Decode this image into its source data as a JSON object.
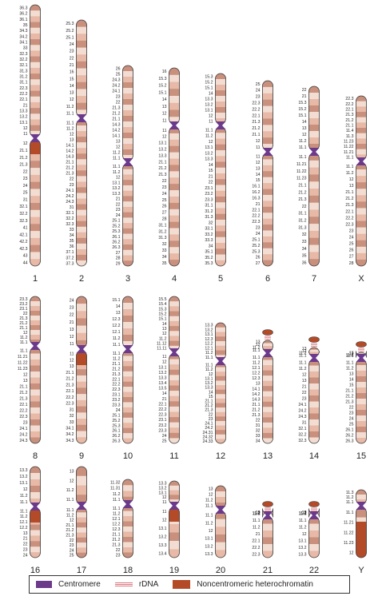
{
  "colors": {
    "outline": "#3a3a3a",
    "band_dark": "#c8907d",
    "band_light": "#f3ddd2",
    "band_mid": "#e7b9a6",
    "centromere": "#6b3a8a",
    "heterochromatin": "#b34a28",
    "rdna": "#d9767e",
    "label": "#231f20"
  },
  "legend": {
    "centromere": "Centromere",
    "rdna": "rDNA",
    "heterochromatin": "Noncentromeric heterochromatin"
  },
  "chromosomes": [
    {
      "name": "1",
      "p": [
        "36.3",
        "36.2",
        "36.1",
        "35",
        "34.3",
        "34.2",
        "34.1",
        "33",
        "32.3",
        "32.2",
        "32.1",
        "31.3",
        "31.2",
        "31.1",
        "22.3",
        "22.2",
        "22.1",
        "21",
        "13.3",
        "13.2",
        "13.1",
        "12",
        "11"
      ],
      "q": [
        "12",
        "21.1",
        "21.2",
        "21.3",
        "22",
        "23",
        "24",
        "25",
        "31",
        "32.1",
        "32.2",
        "32.3",
        "41",
        "42.1",
        "42.2",
        "42.3",
        "43",
        "44"
      ],
      "het": true,
      "stalk": false
    },
    {
      "name": "2",
      "p": [
        "25.3",
        "25.2",
        "25.1",
        "24",
        "23",
        "22",
        "21",
        "16",
        "15",
        "14",
        "13",
        "12",
        "11.2",
        "11.1"
      ],
      "q": [
        "11.1",
        "11.2",
        "12",
        "13",
        "14.1",
        "14.2",
        "14.3",
        "21.1",
        "21.2",
        "21.3",
        "22",
        "23",
        "24.1",
        "24.2",
        "24.3",
        "31",
        "32.1",
        "32.2",
        "32.3",
        "33",
        "34",
        "35",
        "36",
        "37.1",
        "37.2",
        "37.3"
      ],
      "het": false,
      "stalk": false
    },
    {
      "name": "3",
      "p": [
        "26",
        "25",
        "24.3",
        "24.2",
        "24.1",
        "23",
        "22",
        "21.3",
        "21.2",
        "21.1",
        "14.3",
        "14.2",
        "14.1",
        "13",
        "12",
        "11.2",
        "11.1"
      ],
      "q": [
        "11.1",
        "11.2",
        "12",
        "13.1",
        "13.2",
        "13.3",
        "21",
        "22",
        "23",
        "24",
        "25.1",
        "25.2",
        "25.3",
        "26.1",
        "26.2",
        "26.3",
        "27",
        "28",
        "29"
      ],
      "het": false,
      "stalk": false
    },
    {
      "name": "4",
      "p": [
        "16",
        "15.3",
        "15.2",
        "15.1",
        "14",
        "13",
        "12",
        "11"
      ],
      "q": [
        "11",
        "12",
        "13.1",
        "13.2",
        "13.3",
        "21.1",
        "21.2",
        "21.3",
        "22",
        "23",
        "24",
        "25",
        "26",
        "27",
        "28",
        "31.1",
        "31.2",
        "31.3",
        "32",
        "33",
        "34",
        "35"
      ],
      "het": false,
      "stalk": false
    },
    {
      "name": "5",
      "p": [
        "15.3",
        "15.2",
        "15.1",
        "14",
        "13.3",
        "13.2",
        "13.1",
        "12",
        "11"
      ],
      "q": [
        "11.1",
        "11.2",
        "12",
        "13.1",
        "13.2",
        "13.3",
        "14",
        "15",
        "21",
        "22",
        "23.1",
        "23.2",
        "23.3",
        "31.1",
        "31.2",
        "31.3",
        "32",
        "33.1",
        "33.2",
        "33.3",
        "34",
        "35.1",
        "35.2",
        "35.3"
      ],
      "het": false,
      "stalk": false
    },
    {
      "name": "6",
      "p": [
        "25",
        "24",
        "23",
        "22.3",
        "22.2",
        "22.1",
        "21.3",
        "21.2",
        "21.1",
        "12",
        "11"
      ],
      "q": [
        "11",
        "12",
        "13",
        "14",
        "15",
        "16.1",
        "16.2",
        "16.3",
        "21",
        "22.1",
        "22.2",
        "22.3",
        "23",
        "24",
        "25.1",
        "25.2",
        "25.3",
        "26",
        "27"
      ],
      "het": false,
      "stalk": false
    },
    {
      "name": "7",
      "p": [
        "22",
        "21",
        "15.3",
        "15.2",
        "15.1",
        "14",
        "13",
        "12",
        "11.2",
        "11.1"
      ],
      "q": [
        "11.1",
        "11.21",
        "11.22",
        "11.23",
        "21.1",
        "21.2",
        "21.3",
        "22",
        "31.1",
        "31.2",
        "31.3",
        "32",
        "33",
        "34",
        "35",
        "36"
      ],
      "het": false,
      "stalk": false
    },
    {
      "name": "X",
      "p": [
        "22.3",
        "22.2",
        "22.1",
        "21.3",
        "21.2",
        "21.1",
        "11.4",
        "11.3",
        "11.23",
        "11.22",
        "11.21",
        "11.1"
      ],
      "q": [
        "11.1",
        "11.2",
        "12",
        "13",
        "21.1",
        "21.2",
        "21.3",
        "22.1",
        "22.2",
        "22.3",
        "23",
        "24",
        "25",
        "26",
        "27",
        "28"
      ],
      "het": false,
      "stalk": false
    },
    {
      "name": "8",
      "p": [
        "23.3",
        "23.2",
        "23.1",
        "22",
        "21.3",
        "21.2",
        "21.1",
        "12",
        "11.2",
        "11.1"
      ],
      "q": [
        "11.1",
        "11.21",
        "11.22",
        "11.23",
        "12",
        "13",
        "21.1",
        "21.2",
        "21.3",
        "22.1",
        "22.2",
        "22.3",
        "23",
        "24.1",
        "24.2",
        "24.3"
      ],
      "het": false,
      "stalk": false
    },
    {
      "name": "9",
      "p": [
        "24",
        "23",
        "22",
        "21",
        "13",
        "12",
        "11"
      ],
      "q": [
        "11",
        "12",
        "13",
        "21.1",
        "21.2",
        "21.3",
        "22.1",
        "22.2",
        "22.3",
        "31",
        "32",
        "33",
        "34.1",
        "34.2",
        "34.3"
      ],
      "het": true,
      "stalk": false
    },
    {
      "name": "10",
      "p": [
        "15.1",
        "14",
        "13",
        "12.3",
        "12.2",
        "12.1",
        "11.2",
        "11.1"
      ],
      "q": [
        "11.1",
        "11.2",
        "21.1",
        "21.2",
        "21.3",
        "22.1",
        "22.2",
        "22.3",
        "23.1",
        "23.2",
        "23.3",
        "24",
        "25.1",
        "25.2",
        "25.3",
        "26.1",
        "26.2",
        "26.3"
      ],
      "het": false,
      "stalk": false
    },
    {
      "name": "11",
      "p": [
        "15.5",
        "15.4",
        "15.3",
        "15.2",
        "15.1",
        "14",
        "13",
        "12",
        "11.2",
        "11.12",
        "11.11"
      ],
      "q": [
        "11",
        "12",
        "13.1",
        "13.2",
        "13.3",
        "13.4",
        "13.5",
        "14",
        "21",
        "22.1",
        "22.2",
        "22.3",
        "23.1",
        "23.2",
        "23.3",
        "24",
        "25"
      ],
      "het": false,
      "stalk": false
    },
    {
      "name": "12",
      "p": [
        "13.3",
        "13.2",
        "13.1",
        "12.3",
        "12.2",
        "12.1",
        "11.2",
        "11.1"
      ],
      "q": [
        "11.1",
        "11.2",
        "12",
        "13.1",
        "13.2",
        "13.3",
        "14",
        "15",
        "21.1",
        "21.2",
        "21.3",
        "22",
        "23",
        "24.1",
        "24.2",
        "24.31",
        "24.32",
        "24.33"
      ],
      "het": false,
      "stalk": false
    },
    {
      "name": "13",
      "p": [
        "13",
        "12",
        "11.2",
        "11.1"
      ],
      "q": [
        "11.1",
        "11.2",
        "12.1",
        "12.2",
        "12.3",
        "13",
        "14.1",
        "14.2",
        "14.3",
        "21.1",
        "21.2",
        "21.3",
        "22",
        "31",
        "32",
        "33",
        "34"
      ],
      "het": false,
      "stalk": true
    },
    {
      "name": "14",
      "p": [
        "13",
        "12",
        "11.2",
        "11.1"
      ],
      "q": [
        "11.1",
        "11.2",
        "12",
        "13",
        "21",
        "22",
        "23",
        "24.1",
        "24.2",
        "24.3",
        "31",
        "32.1",
        "32.2",
        "32.3"
      ],
      "het": false,
      "stalk": true
    },
    {
      "name": "15",
      "p": [
        "13",
        "12",
        "11.2",
        "11.1"
      ],
      "q": [
        "11.1",
        "11.2",
        "13",
        "14",
        "15",
        "21.1",
        "21.2",
        "21.3",
        "22",
        "23",
        "24",
        "25",
        "26.1",
        "26.2",
        "26.3"
      ],
      "het": false,
      "stalk": true
    },
    {
      "name": "16",
      "p": [
        "13.3",
        "13.2",
        "13.1",
        "12",
        "11.2",
        "11.1"
      ],
      "q": [
        "11.1",
        "11.2",
        "12.1",
        "12.2",
        "13",
        "21",
        "22",
        "23",
        "24"
      ],
      "het": true,
      "stalk": false
    },
    {
      "name": "17",
      "p": [
        "13",
        "12",
        "11.2",
        "11.1"
      ],
      "q": [
        "11.1",
        "11.2",
        "12",
        "21.1",
        "21.2",
        "21.3",
        "22",
        "23",
        "24",
        "25"
      ],
      "het": false,
      "stalk": false
    },
    {
      "name": "18",
      "p": [
        "11.32",
        "11.31",
        "11.2",
        "11.1"
      ],
      "q": [
        "11.1",
        "11.2",
        "12.1",
        "12.2",
        "12.3",
        "21.1",
        "21.2",
        "21.3",
        "22",
        "23"
      ],
      "het": false,
      "stalk": false
    },
    {
      "name": "19",
      "p": [
        "13.3",
        "13.2",
        "13.1",
        "12",
        "11"
      ],
      "q": [
        "11",
        "12",
        "13.1",
        "13.2",
        "13.3",
        "13.4"
      ],
      "het": true,
      "stalk": false
    },
    {
      "name": "20",
      "p": [
        "13",
        "12",
        "11.2",
        "11.1"
      ],
      "q": [
        "11.1",
        "11.2",
        "12",
        "13.1",
        "13.2",
        "13.3"
      ],
      "het": false,
      "stalk": false
    },
    {
      "name": "21",
      "p": [
        "13",
        "12",
        "11.2",
        "11.1"
      ],
      "q": [
        "11.1",
        "11.2",
        "21",
        "22.1",
        "22.2",
        "22.3"
      ],
      "het": false,
      "stalk": true
    },
    {
      "name": "22",
      "p": [
        "13",
        "12",
        "11.2",
        "11.1"
      ],
      "q": [
        "11.1",
        "11.2",
        "12",
        "13.1",
        "13.2",
        "13.3"
      ],
      "het": false,
      "stalk": true
    },
    {
      "name": "Y",
      "p": [
        "11.3",
        "11.2",
        "11.1"
      ],
      "q": [
        "11.1",
        "11.21",
        "11.22",
        "11.23",
        "12"
      ],
      "het": true,
      "stalk": false
    }
  ]
}
